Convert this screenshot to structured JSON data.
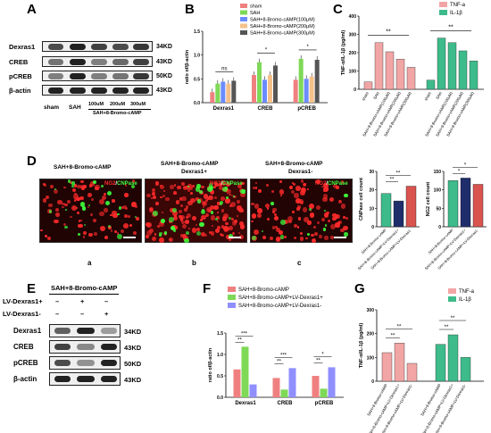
{
  "panel_letters": {
    "a": "A",
    "b": "B",
    "c": "C",
    "d": "D",
    "e": "E",
    "f": "F",
    "g": "G"
  },
  "panelA": {
    "proteins": [
      "Dexras1",
      "CREB",
      "pCREB",
      "β-actin"
    ],
    "kd": [
      "34KD",
      "43KD",
      "50KD",
      "43KD"
    ],
    "lanes": [
      "sham",
      "SAH",
      "100uM",
      "200uM",
      "300uM"
    ],
    "group_label": "SAH+8-Bromo-cAMP"
  },
  "panelD": {
    "titles": [
      "SAH+8-Bromo-cAMP",
      "SAH+8-Bromo-cAMP",
      "SAH+8-Bromo-cAMP"
    ],
    "subtitles": [
      "",
      "Dexras1+",
      "Dexras1-"
    ],
    "stain_ng2": "NG2",
    "stain_sep": "/",
    "stain_cnp": "CNPase",
    "sub": [
      "a",
      "b",
      "c"
    ]
  },
  "panelE": {
    "header": "SAH+8-Bromo-cAMP",
    "rows": [
      {
        "label": "LV-Dexras1+",
        "marks": [
          "–",
          "+",
          "–"
        ]
      },
      {
        "label": "LV-Dexras1-",
        "marks": [
          "–",
          "–",
          "+"
        ]
      }
    ],
    "proteins": [
      "Dexras1",
      "CREB",
      "pCREB",
      "β-actin"
    ],
    "kd": [
      "34KD",
      "43KD",
      "50KD",
      "43KD"
    ]
  },
  "chart_data": [
    {
      "id": "B",
      "type": "bar",
      "categories": [
        "Dexras1",
        "CREB",
        "pCREB"
      ],
      "series": [
        {
          "name": "sham",
          "color": "#f08080",
          "values": [
            0.22,
            0.58,
            0.48
          ]
        },
        {
          "name": "SAH",
          "color": "#7ed957",
          "values": [
            0.4,
            0.85,
            0.92
          ]
        },
        {
          "name": "SAH+8-Bromo-cAMP(100μM)",
          "color": "#6b8cff",
          "values": [
            0.44,
            0.48,
            0.5
          ]
        },
        {
          "name": "SAH+8-Bromo-cAMP(200μM)",
          "color": "#f5c08a",
          "values": [
            0.4,
            0.58,
            0.55
          ]
        },
        {
          "name": "SAH+8-Bromo-cAMP(300μM)",
          "color": "#555555",
          "values": [
            0.46,
            0.78,
            0.9
          ]
        }
      ],
      "ylabel": "ratio of/β-actin",
      "ylim": [
        0,
        1.5
      ],
      "yticks": [
        "0.0",
        "0.5",
        "1.0",
        "1.5"
      ],
      "annotations": [
        "ns",
        "*",
        "*"
      ]
    },
    {
      "id": "C",
      "type": "bar",
      "categories": [
        "sham",
        "SAH",
        "SAH+8-Bromo-cAMP(100μM)",
        "SAH+8-Bromo-cAMP(200μM)",
        "SAH+8-Bromo-cAMP(300μM)"
      ],
      "series": [
        {
          "name": "TNF-a",
          "color": "#f2a5a5",
          "values": [
            40,
            255,
            205,
            165,
            120
          ]
        },
        {
          "name": "IL-1β",
          "color": "#3dbb8a",
          "values": [
            50,
            280,
            255,
            210,
            155
          ]
        }
      ],
      "ylabel": "TNF-α/IL-1β (pg/ml)",
      "ylim": [
        0,
        400
      ],
      "yticks": [
        "0",
        "100",
        "200",
        "300",
        "400"
      ],
      "annotations": [
        "**",
        "**"
      ]
    },
    {
      "id": "D1",
      "type": "bar",
      "categories": [
        "SAH+8-Bromo-cAMP",
        "SAH+8-Bromo-cAMP+LV-Dexras1+",
        "SAH+8-Bromo-cAMP+LV-Dexras1-"
      ],
      "values": [
        18,
        14,
        22
      ],
      "colors": [
        "#3dbb8a",
        "#1f2d6b",
        "#d9534f"
      ],
      "ylabel": "CNPase cell count",
      "ylim": [
        0,
        30
      ],
      "yticks": [
        "0",
        "10",
        "20",
        "30"
      ],
      "annotations": [
        "**",
        "**"
      ]
    },
    {
      "id": "D2",
      "type": "bar",
      "categories": [
        "SAH+8-Bromo-cAMP",
        "SAH+8-Bromo-cAMP+LV-Dexras1+",
        "SAH+8-Bromo-cAMP+LV-Dexras1-"
      ],
      "values": [
        125,
        132,
        115
      ],
      "colors": [
        "#3dbb8a",
        "#1f2d6b",
        "#d9534f"
      ],
      "ylabel": "NG2 cell count",
      "ylim": [
        0,
        150
      ],
      "yticks": [
        "0",
        "50",
        "100",
        "150"
      ],
      "annotations": [
        "*",
        "*"
      ]
    },
    {
      "id": "F",
      "type": "bar",
      "categories": [
        "Dexras1",
        "CREB",
        "pCREB"
      ],
      "series": [
        {
          "name": "SAH+8-Bromo-cAMP",
          "color": "#f08080",
          "values": [
            0.65,
            0.45,
            0.5
          ]
        },
        {
          "name": "SAH+8-Bromo-cAMP+LV-Dexras1+",
          "color": "#7ed957",
          "values": [
            1.18,
            0.18,
            0.2
          ]
        },
        {
          "name": "SAH+8-Bromo-cAMP+LV-Dexras1-",
          "color": "#8f8fff",
          "values": [
            0.3,
            0.68,
            0.7
          ]
        }
      ],
      "ylabel": "ratio of/β-actin",
      "ylim": [
        0,
        1.5
      ],
      "yticks": [
        "0.0",
        "0.5",
        "1.0",
        "1.5"
      ],
      "annotations": [
        "**",
        "***",
        "**",
        "***",
        "**",
        "*"
      ]
    },
    {
      "id": "G",
      "type": "bar",
      "categories": [
        "SAH+8-Bromo-cAMP",
        "SAH+8-Bromo-cAMP+LV-Dexras1+",
        "SAH+8-Bromo-cAMP+LV-Dexras1-"
      ],
      "series": [
        {
          "name": "TNF-a",
          "color": "#f2a5a5",
          "values": [
            120,
            160,
            75
          ]
        },
        {
          "name": "IL-1β",
          "color": "#3dbb8a",
          "values": [
            155,
            195,
            100
          ]
        }
      ],
      "ylabel": "TNF-α/IL-1β (pg/ml)",
      "ylim": [
        0,
        300
      ],
      "yticks": [
        "0",
        "100",
        "200",
        "300"
      ],
      "annotations": [
        "**",
        "**",
        "**",
        "**"
      ]
    }
  ]
}
